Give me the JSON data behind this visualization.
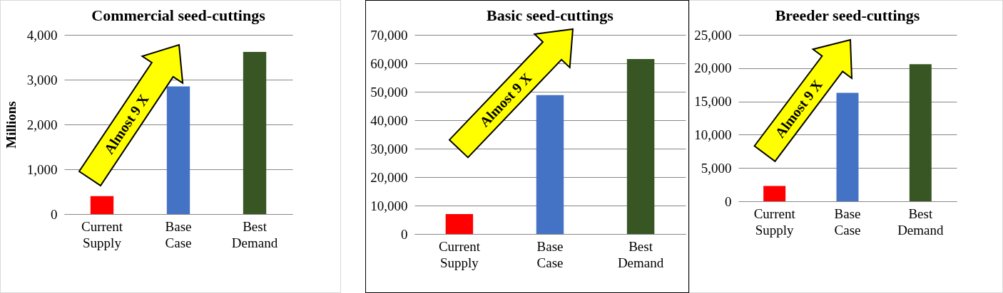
{
  "chart_data": [
    {
      "type": "bar",
      "title": "Commercial seed-cuttings",
      "ylabel": "Millions",
      "categories": [
        "Current Supply",
        "Base Case",
        "Best Demand"
      ],
      "values": [
        400,
        2850,
        3620
      ],
      "colors": [
        "#ff0000",
        "#4472c4",
        "#375623"
      ],
      "ylim": [
        0,
        4000
      ],
      "yticks": [
        {
          "value": 0,
          "label": "0"
        },
        {
          "value": 1000,
          "label": "1,000"
        },
        {
          "value": 2000,
          "label": "2,000"
        },
        {
          "value": 3000,
          "label": "3,000"
        },
        {
          "value": 4000,
          "label": "4,000"
        }
      ],
      "grid": "y",
      "annotations": [
        "Almost 9 X"
      ]
    },
    {
      "type": "bar",
      "title": "Basic seed-cuttings",
      "categories": [
        "Current Supply",
        "Base Case",
        "Best Demand"
      ],
      "values": [
        7000,
        48800,
        61500
      ],
      "colors": [
        "#ff0000",
        "#4472c4",
        "#375623"
      ],
      "ylim": [
        0,
        70000
      ],
      "yticks": [
        {
          "value": 0,
          "label": "0"
        },
        {
          "value": 10000,
          "label": "10,000"
        },
        {
          "value": 20000,
          "label": "20,000"
        },
        {
          "value": 30000,
          "label": "30,000"
        },
        {
          "value": 40000,
          "label": "40,000"
        },
        {
          "value": 50000,
          "label": "50,000"
        },
        {
          "value": 60000,
          "label": "60,000"
        },
        {
          "value": 70000,
          "label": "70,000"
        }
      ],
      "grid": "y",
      "annotations": [
        "Almost 9 X"
      ]
    },
    {
      "type": "bar",
      "title": "Breeder seed-cuttings",
      "categories": [
        "Current Supply",
        "Base Case",
        "Best Demand"
      ],
      "values": [
        2300,
        16300,
        20600
      ],
      "colors": [
        "#ff0000",
        "#4472c4",
        "#375623"
      ],
      "ylim": [
        0,
        25000
      ],
      "yticks": [
        {
          "value": 0,
          "label": "0"
        },
        {
          "value": 5000,
          "label": "5,000"
        },
        {
          "value": 10000,
          "label": "10,000"
        },
        {
          "value": 15000,
          "label": "15,000"
        },
        {
          "value": 20000,
          "label": "20,000"
        },
        {
          "value": 25000,
          "label": "25,000"
        }
      ],
      "grid": "y",
      "annotations": [
        "Almost 9 X"
      ]
    }
  ]
}
